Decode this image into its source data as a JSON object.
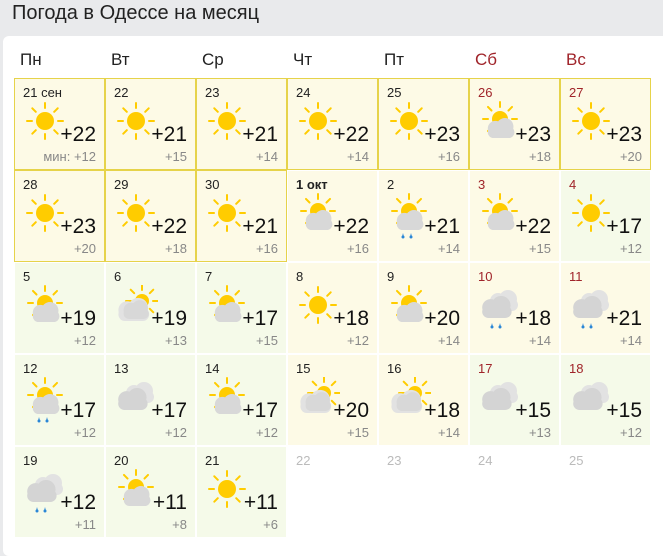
{
  "title": "Погода в Одессе на месяц",
  "weekdays": [
    {
      "label": "Пн",
      "weekend": false
    },
    {
      "label": "Вт",
      "weekend": false
    },
    {
      "label": "Ср",
      "weekend": false
    },
    {
      "label": "Чт",
      "weekend": false
    },
    {
      "label": "Пт",
      "weekend": false
    },
    {
      "label": "Сб",
      "weekend": true
    },
    {
      "label": "Вс",
      "weekend": true
    }
  ],
  "colors": {
    "weekend": "#a0242a",
    "sun": "#ffcc00",
    "cloud": "#d8d8d8",
    "rain": "#2a86d6",
    "past_border": "#e6d34a"
  },
  "days": [
    {
      "date": "21 сен",
      "icon": "sun",
      "max": "+22",
      "min": "мин: +12",
      "tone": "y",
      "past": true
    },
    {
      "date": "22",
      "icon": "sun",
      "max": "+21",
      "min": "+15",
      "tone": "y",
      "past": true
    },
    {
      "date": "23",
      "icon": "sun",
      "max": "+21",
      "min": "+14",
      "tone": "y",
      "past": true
    },
    {
      "date": "24",
      "icon": "sun",
      "max": "+22",
      "min": "+14",
      "tone": "y",
      "past": true
    },
    {
      "date": "25",
      "icon": "sun",
      "max": "+23",
      "min": "+16",
      "tone": "y",
      "past": true
    },
    {
      "date": "26",
      "icon": "partly-cloudy",
      "max": "+23",
      "min": "+18",
      "tone": "y",
      "past": true,
      "weekend": true
    },
    {
      "date": "27",
      "icon": "sun",
      "max": "+23",
      "min": "+20",
      "tone": "y",
      "past": true,
      "weekend": true
    },
    {
      "date": "28",
      "icon": "sun",
      "max": "+23",
      "min": "+20",
      "tone": "y",
      "past": true
    },
    {
      "date": "29",
      "icon": "sun",
      "max": "+22",
      "min": "+18",
      "tone": "y",
      "past": true
    },
    {
      "date": "30",
      "icon": "sun",
      "max": "+21",
      "min": "+16",
      "tone": "y",
      "past": true
    },
    {
      "date": "1 окт",
      "icon": "partly-cloudy",
      "max": "+22",
      "min": "+16",
      "tone": "y",
      "today": true
    },
    {
      "date": "2",
      "icon": "partly-cloudy-rain",
      "max": "+21",
      "min": "+14",
      "tone": "y"
    },
    {
      "date": "3",
      "icon": "partly-cloudy",
      "max": "+22",
      "min": "+15",
      "tone": "y",
      "weekend": true
    },
    {
      "date": "4",
      "icon": "sun",
      "max": "+17",
      "min": "+12",
      "tone": "g",
      "weekend": true
    },
    {
      "date": "5",
      "icon": "partly-cloudy",
      "max": "+19",
      "min": "+12",
      "tone": "g"
    },
    {
      "date": "6",
      "icon": "cloudy-sun",
      "max": "+19",
      "min": "+13",
      "tone": "g"
    },
    {
      "date": "7",
      "icon": "partly-cloudy",
      "max": "+17",
      "min": "+15",
      "tone": "g"
    },
    {
      "date": "8",
      "icon": "sun",
      "max": "+18",
      "min": "+12",
      "tone": "y"
    },
    {
      "date": "9",
      "icon": "partly-cloudy",
      "max": "+20",
      "min": "+14",
      "tone": "y"
    },
    {
      "date": "10",
      "icon": "cloudy-rain",
      "max": "+18",
      "min": "+14",
      "tone": "y",
      "weekend": true
    },
    {
      "date": "11",
      "icon": "cloudy-rain",
      "max": "+21",
      "min": "+14",
      "tone": "y",
      "weekend": true
    },
    {
      "date": "12",
      "icon": "partly-cloudy-rain",
      "max": "+17",
      "min": "+12",
      "tone": "g"
    },
    {
      "date": "13",
      "icon": "cloudy",
      "max": "+17",
      "min": "+12",
      "tone": "g"
    },
    {
      "date": "14",
      "icon": "partly-cloudy",
      "max": "+17",
      "min": "+12",
      "tone": "g"
    },
    {
      "date": "15",
      "icon": "cloudy-sun",
      "max": "+20",
      "min": "+15",
      "tone": "y"
    },
    {
      "date": "16",
      "icon": "cloudy-sun",
      "max": "+18",
      "min": "+14",
      "tone": "y"
    },
    {
      "date": "17",
      "icon": "cloudy",
      "max": "+15",
      "min": "+13",
      "tone": "g",
      "weekend": true
    },
    {
      "date": "18",
      "icon": "cloudy",
      "max": "+15",
      "min": "+12",
      "tone": "g",
      "weekend": true
    },
    {
      "date": "19",
      "icon": "cloudy-rain",
      "max": "+12",
      "min": "+11",
      "tone": "g"
    },
    {
      "date": "20",
      "icon": "partly-cloudy",
      "max": "+11",
      "min": "+8",
      "tone": "g"
    },
    {
      "date": "21",
      "icon": "sun",
      "max": "+11",
      "min": "+6",
      "tone": "g"
    },
    {
      "date": "22",
      "empty": true
    },
    {
      "date": "23",
      "empty": true
    },
    {
      "date": "24",
      "empty": true
    },
    {
      "date": "25",
      "empty": true
    }
  ]
}
